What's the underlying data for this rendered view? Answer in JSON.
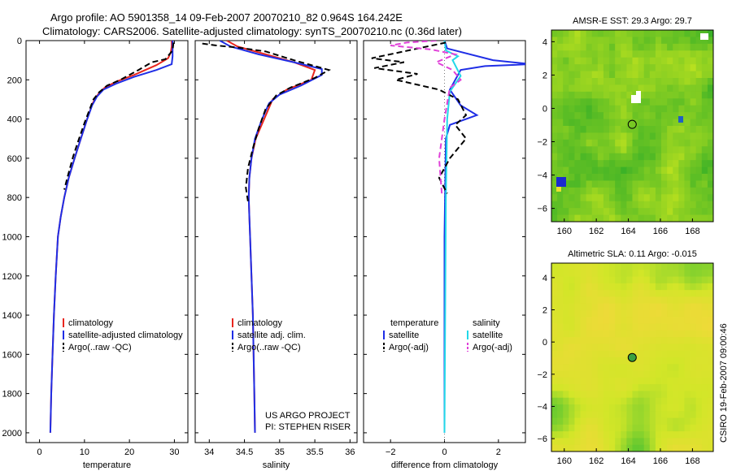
{
  "header": {
    "line1": "Argo profile: AO 5901358_14 09-Feb-2007 20070210_82 0.964S 164.242E",
    "line2": "Climatology: CARS2006. Satellite-adjusted climatology: synTS_20070210.nc (0.36d later)"
  },
  "colors": {
    "clim": "#e8261e",
    "sat": "#1f2ee6",
    "argo": "#000000",
    "sal_sat": "#22d8e8",
    "sal_argo": "#e040d8"
  },
  "chart_data": [
    {
      "type": "line",
      "id": "temperature",
      "xlabel": "temperature",
      "ylabel": "",
      "xlim": [
        -3,
        33
      ],
      "ylim": [
        2050,
        0
      ],
      "xticks": [
        0,
        10,
        20,
        30
      ],
      "yticks": [
        0,
        200,
        400,
        600,
        800,
        1000,
        1200,
        1400,
        1600,
        1800,
        2000
      ],
      "legend": [
        "climatology",
        "satellite-adjusted climatology",
        "Argo(..raw -QC)"
      ],
      "series": [
        {
          "name": "climatology",
          "style": "clim",
          "points": [
            [
              29.4,
              0
            ],
            [
              29.4,
              30
            ],
            [
              29.2,
              60
            ],
            [
              28.6,
              90
            ],
            [
              26,
              125
            ],
            [
              21,
              175
            ],
            [
              17,
              210
            ],
            [
              14.5,
              240
            ],
            [
              13,
              275
            ],
            [
              11.8,
              320
            ],
            [
              10.6,
              400
            ],
            [
              9.2,
              500
            ],
            [
              7.8,
              600
            ],
            [
              6.5,
              700
            ],
            [
              5.5,
              800
            ],
            [
              4.7,
              900
            ],
            [
              4.1,
              1000
            ],
            [
              3.6,
              1200
            ],
            [
              3.2,
              1400
            ],
            [
              2.9,
              1600
            ],
            [
              2.6,
              1800
            ],
            [
              2.4,
              2000
            ]
          ]
        },
        {
          "name": "satellite-adjusted climatology",
          "style": "sat",
          "points": [
            [
              29.6,
              0
            ],
            [
              29.6,
              40
            ],
            [
              29.6,
              80
            ],
            [
              29.4,
              120
            ],
            [
              26,
              150
            ],
            [
              21,
              185
            ],
            [
              17,
              220
            ],
            [
              14.2,
              250
            ],
            [
              12.8,
              285
            ],
            [
              11.7,
              330
            ],
            [
              10.6,
              400
            ],
            [
              9.2,
              500
            ],
            [
              7.8,
              600
            ],
            [
              6.5,
              700
            ],
            [
              5.5,
              800
            ],
            [
              4.7,
              900
            ],
            [
              4.1,
              1000
            ],
            [
              3.6,
              1200
            ],
            [
              3.2,
              1400
            ],
            [
              2.9,
              1600
            ],
            [
              2.6,
              1800
            ],
            [
              2.4,
              2000
            ]
          ]
        },
        {
          "name": "Argo(..raw -QC)",
          "style": "argo",
          "points": [
            [
              29.8,
              10
            ],
            [
              29.6,
              50
            ],
            [
              28,
              95
            ],
            [
              25,
              110
            ],
            [
              22,
              150
            ],
            [
              18,
              200
            ],
            [
              15,
              230
            ],
            [
              13.2,
              265
            ],
            [
              12,
              300
            ],
            [
              11,
              360
            ],
            [
              10,
              420
            ],
            [
              8.8,
              500
            ],
            [
              7.5,
              590
            ],
            [
              6.3,
              690
            ],
            [
              5.5,
              760
            ]
          ]
        }
      ]
    },
    {
      "type": "line",
      "id": "salinity",
      "xlabel": "salinity",
      "xlim": [
        33.8,
        36.1
      ],
      "ylim": [
        2050,
        0
      ],
      "xticks": [
        34,
        34.5,
        35,
        35.5,
        36
      ],
      "xticklabels": [
        "34",
        "34.5",
        "35",
        "35.5",
        "36"
      ],
      "legend": [
        "climatology",
        "satellite adj. clim.",
        "Argo(..raw -QC)"
      ],
      "annotation": [
        "US ARGO PROJECT",
        "PI: STEPHEN RISER"
      ],
      "series": [
        {
          "name": "climatology",
          "style": "clim",
          "points": [
            [
              34.25,
              0
            ],
            [
              34.4,
              30
            ],
            [
              34.8,
              70
            ],
            [
              35.2,
              110
            ],
            [
              35.5,
              150
            ],
            [
              35.45,
              200
            ],
            [
              35.1,
              250
            ],
            [
              34.9,
              300
            ],
            [
              34.78,
              400
            ],
            [
              34.66,
              500
            ],
            [
              34.6,
              600
            ],
            [
              34.57,
              700
            ],
            [
              34.56,
              800
            ],
            [
              34.57,
              900
            ],
            [
              34.58,
              1000
            ],
            [
              34.6,
              1200
            ],
            [
              34.62,
              1400
            ],
            [
              34.63,
              1600
            ],
            [
              34.64,
              1800
            ],
            [
              34.65,
              2000
            ]
          ]
        },
        {
          "name": "satellite adj. clim.",
          "style": "sat",
          "points": [
            [
              34.15,
              0
            ],
            [
              34.3,
              30
            ],
            [
              34.7,
              70
            ],
            [
              35.2,
              110
            ],
            [
              35.6,
              145
            ],
            [
              35.6,
              175
            ],
            [
              35.3,
              230
            ],
            [
              35,
              275
            ],
            [
              34.85,
              320
            ],
            [
              34.75,
              400
            ],
            [
              34.65,
              500
            ],
            [
              34.6,
              600
            ],
            [
              34.57,
              700
            ],
            [
              34.56,
              800
            ],
            [
              34.57,
              900
            ],
            [
              34.58,
              1000
            ],
            [
              34.6,
              1200
            ],
            [
              34.62,
              1400
            ],
            [
              34.63,
              1600
            ],
            [
              34.64,
              1800
            ],
            [
              34.65,
              2000
            ]
          ]
        },
        {
          "name": "Argo(..raw -QC)",
          "style": "argo",
          "points": [
            [
              33.9,
              15
            ],
            [
              34.1,
              25
            ],
            [
              34.4,
              35
            ],
            [
              34.8,
              55
            ],
            [
              35.2,
              100
            ],
            [
              35.5,
              130
            ],
            [
              35.7,
              150
            ],
            [
              35.5,
              190
            ],
            [
              35.15,
              240
            ],
            [
              34.95,
              280
            ],
            [
              34.8,
              350
            ],
            [
              34.7,
              450
            ],
            [
              34.62,
              550
            ],
            [
              34.55,
              650
            ],
            [
              34.52,
              750
            ],
            [
              34.55,
              820
            ]
          ]
        }
      ]
    },
    {
      "type": "line",
      "id": "difference",
      "xlabel": "difference from climatology",
      "xlim": [
        -3,
        3
      ],
      "ylim": [
        2050,
        0
      ],
      "xticks": [
        -2,
        0,
        2
      ],
      "legend_left_title": "temperature",
      "legend_right_title": "salinity",
      "legend": [
        "satellite",
        "Argo(-adj)",
        "satellite",
        "Argo(-adj)"
      ],
      "series": [
        {
          "name": "temperature satellite",
          "style": "sat",
          "points": [
            [
              0,
              0
            ],
            [
              0.1,
              40
            ],
            [
              1.8,
              100
            ],
            [
              3.2,
              120
            ],
            [
              1.5,
              130
            ],
            [
              0.6,
              150
            ],
            [
              0.2,
              250
            ],
            [
              0.6,
              330
            ],
            [
              1.2,
              380
            ],
            [
              0.2,
              430
            ],
            [
              0.05,
              500
            ],
            [
              0,
              1000
            ],
            [
              0,
              2000
            ]
          ]
        },
        {
          "name": "salinity satellite",
          "style": "sal_sat",
          "points": [
            [
              0,
              0
            ],
            [
              0.05,
              50
            ],
            [
              0.5,
              80
            ],
            [
              0.3,
              100
            ],
            [
              0.6,
              180
            ],
            [
              0.2,
              260
            ],
            [
              0.1,
              400
            ],
            [
              0.05,
              800
            ],
            [
              0,
              2000
            ]
          ]
        },
        {
          "name": "temperature Argo(-adj)",
          "style": "argo",
          "points": [
            [
              0.05,
              10
            ],
            [
              -2.7,
              90
            ],
            [
              -1.5,
              110
            ],
            [
              -2.6,
              140
            ],
            [
              -1,
              170
            ],
            [
              -1.8,
              200
            ],
            [
              -0.2,
              250
            ],
            [
              0.5,
              300
            ],
            [
              0.8,
              380
            ],
            [
              0.4,
              430
            ],
            [
              0.8,
              500
            ],
            [
              0.2,
              600
            ],
            [
              -0.2,
              700
            ],
            [
              0.1,
              780
            ]
          ]
        },
        {
          "name": "salinity Argo(-adj)",
          "style": "sal_argo",
          "points": [
            [
              -0.3,
              0
            ],
            [
              -1.4,
              10
            ],
            [
              -2,
              25
            ],
            [
              -0.5,
              45
            ],
            [
              0.4,
              70
            ],
            [
              -0.3,
              110
            ],
            [
              0.3,
              150
            ],
            [
              0.6,
              200
            ],
            [
              0.2,
              240
            ],
            [
              0,
              400
            ],
            [
              -0.2,
              600
            ],
            [
              -0.1,
              780
            ]
          ]
        }
      ]
    },
    {
      "type": "heatmap",
      "id": "sst",
      "title": "AMSR-E SST: 29.3 Argo: 29.7",
      "xlim": [
        159.2,
        169.3
      ],
      "ylim": [
        -6.8,
        4.7
      ],
      "xticks": [
        160,
        162,
        164,
        166,
        168
      ],
      "yticks": [
        4,
        2,
        0,
        -2,
        -4,
        -6
      ],
      "marker": [
        164.24,
        -0.96
      ]
    },
    {
      "type": "heatmap",
      "id": "sla",
      "title": "Altimetric SLA: 0.11  Argo: -0.015",
      "xlim": [
        159.2,
        169.3
      ],
      "ylim": [
        -6.8,
        4.9
      ],
      "xticks": [
        160,
        162,
        164,
        166,
        168
      ],
      "yticks": [
        4,
        2,
        0,
        -2,
        -4,
        -6
      ],
      "marker": [
        164.24,
        -0.96
      ]
    }
  ],
  "stamp": "CSIRO 19-Feb-2007 09:00:46"
}
